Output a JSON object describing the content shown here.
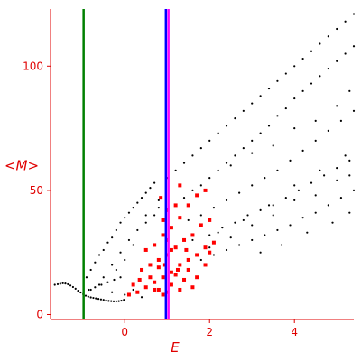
{
  "chart_data": {
    "type": "scatter",
    "xlabel": "E",
    "ylabel": "<M>",
    "xlim": [
      -1.75,
      5.4
    ],
    "ylim": [
      -2,
      123
    ],
    "x_ticks": [
      0,
      2,
      4
    ],
    "y_ticks": [
      0,
      50,
      100
    ],
    "grid": false,
    "axis_color": "#e00000",
    "vertical_lines": [
      {
        "x": -0.97,
        "color": "#008000"
      },
      {
        "x": 0.97,
        "color": "#0000ff"
      },
      {
        "x": 1.03,
        "color": "#ff00ff"
      }
    ],
    "series": [
      {
        "color": "#000000",
        "marker": "dot",
        "points": [
          [
            -1.65,
            12
          ],
          [
            -1.58,
            12.2
          ],
          [
            -1.52,
            12.4
          ],
          [
            -1.46,
            12.6
          ],
          [
            -1.4,
            12.5
          ],
          [
            -1.34,
            12.2
          ],
          [
            -1.28,
            11.7
          ],
          [
            -1.22,
            11.1
          ],
          [
            -1.16,
            10.4
          ],
          [
            -1.1,
            9.6
          ],
          [
            -1.04,
            8.9
          ],
          [
            -0.98,
            8.2
          ],
          [
            -0.92,
            7.6
          ],
          [
            -0.86,
            7.2
          ],
          [
            -0.8,
            6.9
          ],
          [
            -0.74,
            6.7
          ],
          [
            -0.68,
            6.5
          ],
          [
            -0.62,
            6.3
          ],
          [
            -0.56,
            6.1
          ],
          [
            -0.5,
            5.9
          ],
          [
            -0.44,
            5.7
          ],
          [
            -0.38,
            5.5
          ],
          [
            -0.32,
            5.4
          ],
          [
            -0.26,
            5.3
          ],
          [
            -0.2,
            5.3
          ],
          [
            -0.14,
            5.4
          ],
          [
            -0.08,
            5.6
          ],
          [
            -0.02,
            5.9
          ],
          [
            -0.85,
            10
          ],
          [
            -0.7,
            11
          ],
          [
            -0.55,
            12
          ],
          [
            -0.4,
            13
          ],
          [
            -0.25,
            14
          ],
          [
            -0.1,
            15
          ],
          [
            -0.9,
            15
          ],
          [
            -0.8,
            18
          ],
          [
            -0.7,
            21
          ],
          [
            -0.6,
            24
          ],
          [
            -0.5,
            26
          ],
          [
            -0.4,
            29
          ],
          [
            -0.3,
            31
          ],
          [
            -0.2,
            34
          ],
          [
            -0.1,
            37
          ],
          [
            0,
            39
          ],
          [
            0.1,
            41
          ],
          [
            0.2,
            43
          ],
          [
            0.3,
            45
          ],
          [
            0.4,
            47
          ],
          [
            0.5,
            49
          ],
          [
            0.6,
            51
          ],
          [
            0.7,
            53
          ],
          [
            -0.5,
            15
          ],
          [
            -0.3,
            20
          ],
          [
            -0.1,
            25
          ],
          [
            0.1,
            30
          ],
          [
            0.3,
            34
          ],
          [
            0.5,
            37
          ],
          [
            0.7,
            40
          ],
          [
            -0.8,
            10
          ],
          [
            -0.6,
            12
          ],
          [
            -0.3,
            9
          ],
          [
            0,
            8
          ],
          [
            0.2,
            10
          ],
          [
            0.4,
            7
          ],
          [
            -0.2,
            18
          ],
          [
            0,
            22
          ],
          [
            0.2,
            28
          ],
          [
            0.5,
            40
          ],
          [
            0.8,
            46
          ],
          [
            0.8,
            43
          ],
          [
            1.0,
            55
          ],
          [
            1.2,
            58
          ],
          [
            1.4,
            61
          ],
          [
            1.6,
            64
          ],
          [
            1.8,
            67
          ],
          [
            2.0,
            70
          ],
          [
            2.2,
            73
          ],
          [
            2.4,
            76
          ],
          [
            2.6,
            79
          ],
          [
            2.8,
            82
          ],
          [
            3.0,
            85
          ],
          [
            3.2,
            88
          ],
          [
            3.4,
            91
          ],
          [
            3.6,
            94
          ],
          [
            3.8,
            97
          ],
          [
            4.0,
            100
          ],
          [
            4.2,
            103
          ],
          [
            4.4,
            106
          ],
          [
            4.6,
            109
          ],
          [
            4.8,
            112
          ],
          [
            5.0,
            115
          ],
          [
            5.2,
            118
          ],
          [
            5.4,
            121
          ],
          [
            1.2,
            44
          ],
          [
            1.4,
            47
          ],
          [
            1.6,
            50
          ],
          [
            1.8,
            52
          ],
          [
            2.0,
            55
          ],
          [
            2.2,
            58
          ],
          [
            2.4,
            61
          ],
          [
            2.6,
            64
          ],
          [
            2.8,
            67
          ],
          [
            3.0,
            70
          ],
          [
            3.2,
            73
          ],
          [
            3.4,
            76
          ],
          [
            3.6,
            80
          ],
          [
            3.8,
            83
          ],
          [
            4.0,
            87
          ],
          [
            4.2,
            90
          ],
          [
            4.4,
            93
          ],
          [
            4.6,
            96
          ],
          [
            4.8,
            99
          ],
          [
            5.0,
            102
          ],
          [
            5.2,
            105
          ],
          [
            5.4,
            108
          ],
          [
            1.5,
            38
          ],
          [
            1.8,
            40
          ],
          [
            2.1,
            43
          ],
          [
            2.4,
            46
          ],
          [
            2.7,
            49
          ],
          [
            3.0,
            52
          ],
          [
            3.3,
            55
          ],
          [
            3.6,
            58
          ],
          [
            3.9,
            62
          ],
          [
            4.2,
            66
          ],
          [
            4.5,
            70
          ],
          [
            4.8,
            74
          ],
          [
            5.1,
            78
          ],
          [
            5.4,
            82
          ],
          [
            1.6,
            30
          ],
          [
            2.0,
            32
          ],
          [
            2.3,
            35
          ],
          [
            2.6,
            37
          ],
          [
            2.9,
            40
          ],
          [
            3.2,
            42
          ],
          [
            3.5,
            44
          ],
          [
            3.8,
            47
          ],
          [
            4.1,
            50
          ],
          [
            4.4,
            53
          ],
          [
            4.7,
            56
          ],
          [
            5.0,
            59
          ],
          [
            5.3,
            62
          ],
          [
            1.8,
            22
          ],
          [
            2.1,
            24
          ],
          [
            2.4,
            26
          ],
          [
            2.7,
            28
          ],
          [
            3.0,
            30
          ],
          [
            3.3,
            32
          ],
          [
            3.6,
            34
          ],
          [
            3.9,
            36
          ],
          [
            4.2,
            39
          ],
          [
            4.5,
            41
          ],
          [
            4.8,
            44
          ],
          [
            5.1,
            47
          ],
          [
            5.4,
            50
          ],
          [
            2.0,
            27
          ],
          [
            2.5,
            31
          ],
          [
            3.0,
            36
          ],
          [
            3.5,
            40
          ],
          [
            4.0,
            46
          ],
          [
            4.5,
            48
          ],
          [
            5.0,
            54
          ],
          [
            5.3,
            56
          ],
          [
            2.2,
            33
          ],
          [
            2.8,
            38
          ],
          [
            3.4,
            44
          ],
          [
            4.0,
            52
          ],
          [
            4.6,
            58
          ],
          [
            5.2,
            64
          ],
          [
            3.2,
            25
          ],
          [
            3.7,
            28
          ],
          [
            4.3,
            33
          ],
          [
            4.9,
            37
          ],
          [
            5.3,
            41
          ],
          [
            2.5,
            60
          ],
          [
            3.0,
            65
          ],
          [
            3.5,
            68
          ],
          [
            4.0,
            75
          ],
          [
            4.5,
            78
          ],
          [
            5.0,
            84
          ],
          [
            5.3,
            90
          ]
        ]
      },
      {
        "color": "#ff0000",
        "marker": "square",
        "points": [
          [
            0.3,
            9
          ],
          [
            0.5,
            11
          ],
          [
            0.7,
            13
          ],
          [
            0.9,
            15
          ],
          [
            1.1,
            17
          ],
          [
            1.3,
            20
          ],
          [
            1.5,
            22
          ],
          [
            1.7,
            24
          ],
          [
            1.9,
            27
          ],
          [
            2.1,
            29
          ],
          [
            0.4,
            18
          ],
          [
            0.6,
            20
          ],
          [
            0.8,
            22
          ],
          [
            1.0,
            24
          ],
          [
            1.2,
            27
          ],
          [
            1.4,
            30
          ],
          [
            1.6,
            32
          ],
          [
            1.8,
            36
          ],
          [
            2.0,
            38
          ],
          [
            0.5,
            26
          ],
          [
            0.7,
            28
          ],
          [
            0.9,
            32
          ],
          [
            1.1,
            35
          ],
          [
            1.3,
            39
          ],
          [
            1.5,
            44
          ],
          [
            1.7,
            48
          ],
          [
            1.9,
            50
          ],
          [
            0.8,
            10
          ],
          [
            0.9,
            8
          ],
          [
            1.0,
            9
          ],
          [
            1.1,
            12
          ],
          [
            1.2,
            16
          ],
          [
            1.3,
            10
          ],
          [
            1.4,
            14
          ],
          [
            1.5,
            18
          ],
          [
            1.6,
            11
          ],
          [
            0.6,
            15
          ],
          [
            0.7,
            10
          ],
          [
            0.8,
            19
          ],
          [
            1.0,
            30
          ],
          [
            1.0,
            42
          ],
          [
            1.2,
            44
          ],
          [
            1.3,
            52
          ],
          [
            0.85,
            47
          ],
          [
            0.9,
            38
          ],
          [
            0.2,
            12
          ],
          [
            0.1,
            8
          ],
          [
            0.35,
            14
          ],
          [
            1.7,
            15
          ],
          [
            1.9,
            20
          ],
          [
            2.0,
            25
          ],
          [
            1.1,
            26
          ],
          [
            0.95,
            20
          ],
          [
            1.25,
            18
          ],
          [
            1.45,
            26
          ]
        ]
      }
    ]
  }
}
